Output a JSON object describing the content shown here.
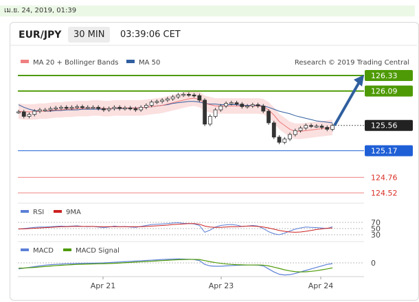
{
  "top_date": "เม.ย. 24, 2019, 01:39",
  "header": {
    "pair": "EUR/JPY",
    "timeframe": "30 MIN",
    "time": "03:39:06 CET"
  },
  "legend": {
    "ma20": "MA 20 + Bollinger Bands",
    "ma50": "MA 50",
    "credit": "Research © 2019 Trading Central",
    "ma20_color": "#f08080",
    "ma50_color": "#2f5f9f"
  },
  "chart_data": [
    {
      "type": "line",
      "panel": "price",
      "levels": [
        {
          "value": 126.33,
          "label": "126.33",
          "kind": "resistance",
          "color": "#4e9a06"
        },
        {
          "value": 126.09,
          "label": "126.09",
          "kind": "resistance",
          "color": "#4e9a06"
        },
        {
          "value": 125.56,
          "label": "125.56",
          "kind": "last",
          "color": "#222222"
        },
        {
          "value": 125.17,
          "label": "125.17",
          "kind": "pivot",
          "color": "#1f5fd6"
        },
        {
          "value": 124.76,
          "label": "124.76",
          "kind": "support",
          "color": "#d93025"
        },
        {
          "value": 124.52,
          "label": "124.52",
          "kind": "support",
          "color": "#d93025"
        }
      ],
      "price_series": [
        125.77,
        125.7,
        125.73,
        125.78,
        125.8,
        125.8,
        125.82,
        125.83,
        125.84,
        125.83,
        125.84,
        125.85,
        125.84,
        125.84,
        125.84,
        125.82,
        125.8,
        125.82,
        125.84,
        125.82,
        125.83,
        125.82,
        125.8,
        125.84,
        125.87,
        125.92,
        125.93,
        125.95,
        125.97,
        126.0,
        126.03,
        126.04,
        126.03,
        126.02,
        125.95,
        125.58,
        125.7,
        125.8,
        125.86,
        125.9,
        125.91,
        125.89,
        125.85,
        125.86,
        125.88,
        125.86,
        125.78,
        125.6,
        125.38,
        125.3,
        125.35,
        125.42,
        125.48,
        125.52,
        125.56,
        125.55,
        125.55,
        125.53,
        125.5,
        125.56
      ],
      "ma20": [
        125.78,
        125.77,
        125.77,
        125.77,
        125.78,
        125.78,
        125.79,
        125.8,
        125.8,
        125.81,
        125.81,
        125.82,
        125.82,
        125.82,
        125.83,
        125.83,
        125.82,
        125.82,
        125.83,
        125.83,
        125.83,
        125.83,
        125.83,
        125.83,
        125.84,
        125.85,
        125.86,
        125.87,
        125.89,
        125.91,
        125.93,
        125.95,
        125.97,
        125.98,
        125.96,
        125.9,
        125.88,
        125.86,
        125.86,
        125.86,
        125.86,
        125.86,
        125.86,
        125.86,
        125.86,
        125.86,
        125.85,
        125.8,
        125.72,
        125.62,
        125.56,
        125.5,
        125.47,
        125.47,
        125.48,
        125.49,
        125.5,
        125.51,
        125.52,
        125.53
      ],
      "ma50": [
        125.88,
        125.84,
        125.81,
        125.79,
        125.78,
        125.78,
        125.78,
        125.79,
        125.79,
        125.8,
        125.8,
        125.8,
        125.81,
        125.81,
        125.81,
        125.81,
        125.81,
        125.82,
        125.82,
        125.82,
        125.82,
        125.83,
        125.83,
        125.83,
        125.84,
        125.85,
        125.86,
        125.87,
        125.88,
        125.9,
        125.91,
        125.92,
        125.93,
        125.93,
        125.92,
        125.9,
        125.89,
        125.89,
        125.88,
        125.88,
        125.88,
        125.88,
        125.87,
        125.87,
        125.87,
        125.87,
        125.86,
        125.84,
        125.81,
        125.78,
        125.76,
        125.74,
        125.71,
        125.69,
        125.67,
        125.65,
        125.63,
        125.62,
        125.61,
        125.6
      ],
      "projection_target": 126.33,
      "x_labels": [
        "Apr 21",
        "Apr 23",
        "Apr 24"
      ]
    },
    {
      "type": "line",
      "panel": "RSI",
      "series": [
        {
          "name": "RSI",
          "color": "#5b7fd6"
        },
        {
          "name": "9MA",
          "color": "#cc2020"
        }
      ],
      "ticks": [
        "70",
        "50",
        "30"
      ],
      "rsi": [
        48,
        50,
        52,
        54,
        55,
        55,
        56,
        57,
        58,
        57,
        58,
        59,
        57,
        56,
        57,
        55,
        53,
        55,
        58,
        56,
        57,
        55,
        54,
        57,
        60,
        63,
        64,
        65,
        66,
        68,
        69,
        67,
        66,
        65,
        60,
        38,
        45,
        55,
        60,
        62,
        63,
        61,
        57,
        58,
        60,
        58,
        50,
        40,
        33,
        30,
        35,
        42,
        48,
        52,
        55,
        54,
        53,
        52,
        50,
        56
      ],
      "ma9": [
        49,
        49,
        50,
        51,
        52,
        53,
        54,
        55,
        56,
        56,
        57,
        57,
        57,
        57,
        57,
        56,
        56,
        56,
        56,
        56,
        56,
        56,
        56,
        56,
        57,
        58,
        59,
        60,
        61,
        63,
        64,
        65,
        66,
        66,
        64,
        58,
        55,
        54,
        54,
        55,
        56,
        56,
        57,
        58,
        58,
        57,
        55,
        52,
        48,
        44,
        41,
        39,
        38,
        39,
        41,
        44,
        47,
        49,
        51,
        52
      ]
    },
    {
      "type": "line",
      "panel": "MACD",
      "series": [
        {
          "name": "MACD",
          "color": "#5b7fd6"
        },
        {
          "name": "MACD Signal",
          "color": "#4e9a06"
        }
      ],
      "ticks": [
        "0"
      ],
      "macd": [
        -0.04,
        -0.035,
        -0.03,
        -0.025,
        -0.02,
        -0.015,
        -0.012,
        -0.01,
        -0.008,
        -0.006,
        -0.005,
        -0.004,
        -0.003,
        -0.002,
        -0.002,
        -0.001,
        0.0,
        0.002,
        0.004,
        0.006,
        0.008,
        0.01,
        0.012,
        0.014,
        0.016,
        0.018,
        0.02,
        0.022,
        0.024,
        0.025,
        0.026,
        0.025,
        0.024,
        0.022,
        0.015,
        -0.01,
        -0.02,
        -0.022,
        -0.022,
        -0.02,
        -0.018,
        -0.016,
        -0.015,
        -0.014,
        -0.014,
        -0.015,
        -0.02,
        -0.04,
        -0.06,
        -0.075,
        -0.08,
        -0.078,
        -0.07,
        -0.06,
        -0.05,
        -0.04,
        -0.03,
        -0.02,
        -0.01,
        -0.005
      ],
      "signal": [
        -0.035,
        -0.034,
        -0.032,
        -0.03,
        -0.027,
        -0.024,
        -0.021,
        -0.018,
        -0.016,
        -0.014,
        -0.012,
        -0.01,
        -0.009,
        -0.008,
        -0.007,
        -0.006,
        -0.005,
        -0.004,
        -0.003,
        -0.001,
        0.001,
        0.003,
        0.005,
        0.007,
        0.009,
        0.011,
        0.013,
        0.015,
        0.017,
        0.019,
        0.021,
        0.022,
        0.023,
        0.023,
        0.022,
        0.015,
        0.008,
        0.002,
        -0.003,
        -0.007,
        -0.01,
        -0.012,
        -0.013,
        -0.014,
        -0.014,
        -0.014,
        -0.015,
        -0.02,
        -0.028,
        -0.037,
        -0.046,
        -0.053,
        -0.058,
        -0.06,
        -0.059,
        -0.056,
        -0.052,
        -0.046,
        -0.04,
        -0.033
      ]
    }
  ]
}
